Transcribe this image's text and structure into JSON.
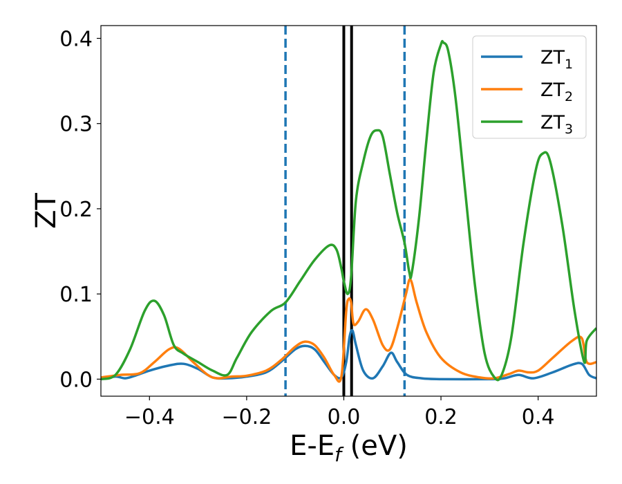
{
  "chart_data": {
    "type": "line",
    "xlabel": "E-E",
    "xlabel_sub": "f",
    "xlabel_unit": " (eV)",
    "ylabel": "ZT",
    "xlim": [
      -0.5,
      0.52
    ],
    "ylim": [
      -0.02,
      0.415
    ],
    "grid": false,
    "legend_position": "top-right",
    "x_ticks": [
      -0.4,
      -0.2,
      0.0,
      0.2,
      0.4
    ],
    "x_tick_labels": [
      "−0.4",
      "−0.2",
      "0.0",
      "0.2",
      "0.4"
    ],
    "y_ticks": [
      0.0,
      0.1,
      0.2,
      0.3,
      0.4
    ],
    "y_tick_labels": [
      "0.0",
      "0.1",
      "0.2",
      "0.3",
      "0.4"
    ],
    "vertical_lines": [
      {
        "x": -0.12,
        "style": "dashed",
        "color": "#1f77b4"
      },
      {
        "x": 0.0,
        "style": "solid",
        "color": "#000000"
      },
      {
        "x": 0.016,
        "style": "dashed",
        "color": "#1f77b4"
      },
      {
        "x": 0.016,
        "style": "solid",
        "color": "#000000"
      },
      {
        "x": 0.125,
        "style": "dashed",
        "color": "#1f77b4"
      }
    ],
    "series": [
      {
        "name": "ZT",
        "sub": "1",
        "color": "#1f77b4",
        "points": [
          [
            -0.5,
            0.0
          ],
          [
            -0.47,
            0.003
          ],
          [
            -0.45,
            0.001
          ],
          [
            -0.43,
            0.004
          ],
          [
            -0.4,
            0.01
          ],
          [
            -0.36,
            0.016
          ],
          [
            -0.33,
            0.018
          ],
          [
            -0.3,
            0.012
          ],
          [
            -0.27,
            0.002
          ],
          [
            -0.24,
            0.001
          ],
          [
            -0.2,
            0.003
          ],
          [
            -0.16,
            0.008
          ],
          [
            -0.13,
            0.02
          ],
          [
            -0.1,
            0.035
          ],
          [
            -0.08,
            0.039
          ],
          [
            -0.06,
            0.035
          ],
          [
            -0.04,
            0.02
          ],
          [
            -0.02,
            0.005
          ],
          [
            -0.005,
            0.002
          ],
          [
            0.005,
            0.02
          ],
          [
            0.012,
            0.05
          ],
          [
            0.018,
            0.057
          ],
          [
            0.025,
            0.04
          ],
          [
            0.04,
            0.01
          ],
          [
            0.06,
            0.001
          ],
          [
            0.08,
            0.015
          ],
          [
            0.097,
            0.031
          ],
          [
            0.11,
            0.02
          ],
          [
            0.13,
            0.005
          ],
          [
            0.16,
            0.001
          ],
          [
            0.2,
            0.0
          ],
          [
            0.3,
            0.0
          ],
          [
            0.33,
            0.001
          ],
          [
            0.36,
            0.005
          ],
          [
            0.39,
            0.001
          ],
          [
            0.43,
            0.008
          ],
          [
            0.47,
            0.017
          ],
          [
            0.49,
            0.018
          ],
          [
            0.505,
            0.005
          ],
          [
            0.52,
            0.001
          ]
        ]
      },
      {
        "name": "ZT",
        "sub": "2",
        "color": "#ff7f0e",
        "points": [
          [
            -0.5,
            0.002
          ],
          [
            -0.46,
            0.005
          ],
          [
            -0.42,
            0.007
          ],
          [
            -0.39,
            0.02
          ],
          [
            -0.36,
            0.035
          ],
          [
            -0.34,
            0.036
          ],
          [
            -0.31,
            0.02
          ],
          [
            -0.28,
            0.005
          ],
          [
            -0.26,
            0.001
          ],
          [
            -0.23,
            0.003
          ],
          [
            -0.2,
            0.004
          ],
          [
            -0.16,
            0.01
          ],
          [
            -0.13,
            0.022
          ],
          [
            -0.1,
            0.038
          ],
          [
            -0.08,
            0.044
          ],
          [
            -0.06,
            0.04
          ],
          [
            -0.04,
            0.025
          ],
          [
            -0.02,
            0.005
          ],
          [
            -0.005,
            0.003
          ],
          [
            0.005,
            0.08
          ],
          [
            0.01,
            0.094
          ],
          [
            0.015,
            0.09
          ],
          [
            0.02,
            0.065
          ],
          [
            0.03,
            0.068
          ],
          [
            0.045,
            0.082
          ],
          [
            0.06,
            0.07
          ],
          [
            0.08,
            0.04
          ],
          [
            0.095,
            0.035
          ],
          [
            0.11,
            0.06
          ],
          [
            0.128,
            0.1
          ],
          [
            0.137,
            0.117
          ],
          [
            0.15,
            0.09
          ],
          [
            0.17,
            0.055
          ],
          [
            0.2,
            0.025
          ],
          [
            0.24,
            0.008
          ],
          [
            0.28,
            0.002
          ],
          [
            0.31,
            0.001
          ],
          [
            0.34,
            0.006
          ],
          [
            0.36,
            0.01
          ],
          [
            0.38,
            0.008
          ],
          [
            0.4,
            0.01
          ],
          [
            0.43,
            0.025
          ],
          [
            0.47,
            0.045
          ],
          [
            0.49,
            0.048
          ],
          [
            0.5,
            0.02
          ],
          [
            0.52,
            0.02
          ]
        ]
      },
      {
        "name": "ZT",
        "sub": "3",
        "color": "#2ca02c",
        "points": [
          [
            -0.5,
            0.0
          ],
          [
            -0.47,
            0.005
          ],
          [
            -0.44,
            0.035
          ],
          [
            -0.41,
            0.08
          ],
          [
            -0.39,
            0.092
          ],
          [
            -0.37,
            0.075
          ],
          [
            -0.35,
            0.04
          ],
          [
            -0.33,
            0.03
          ],
          [
            -0.3,
            0.02
          ],
          [
            -0.27,
            0.01
          ],
          [
            -0.24,
            0.005
          ],
          [
            -0.22,
            0.025
          ],
          [
            -0.19,
            0.055
          ],
          [
            -0.15,
            0.08
          ],
          [
            -0.12,
            0.09
          ],
          [
            -0.09,
            0.115
          ],
          [
            -0.06,
            0.14
          ],
          [
            -0.03,
            0.157
          ],
          [
            -0.015,
            0.152
          ],
          [
            -0.005,
            0.13
          ],
          [
            0.0,
            0.115
          ],
          [
            0.008,
            0.1
          ],
          [
            0.015,
            0.12
          ],
          [
            0.025,
            0.21
          ],
          [
            0.04,
            0.255
          ],
          [
            0.055,
            0.285
          ],
          [
            0.068,
            0.292
          ],
          [
            0.08,
            0.285
          ],
          [
            0.095,
            0.24
          ],
          [
            0.11,
            0.195
          ],
          [
            0.125,
            0.16
          ],
          [
            0.135,
            0.125
          ],
          [
            0.14,
            0.125
          ],
          [
            0.155,
            0.19
          ],
          [
            0.17,
            0.28
          ],
          [
            0.185,
            0.36
          ],
          [
            0.2,
            0.393
          ],
          [
            0.205,
            0.395
          ],
          [
            0.215,
            0.385
          ],
          [
            0.23,
            0.33
          ],
          [
            0.25,
            0.22
          ],
          [
            0.27,
            0.11
          ],
          [
            0.29,
            0.03
          ],
          [
            0.31,
            0.002
          ],
          [
            0.325,
            0.005
          ],
          [
            0.345,
            0.05
          ],
          [
            0.37,
            0.16
          ],
          [
            0.395,
            0.245
          ],
          [
            0.41,
            0.265
          ],
          [
            0.425,
            0.255
          ],
          [
            0.45,
            0.18
          ],
          [
            0.475,
            0.08
          ],
          [
            0.495,
            0.02
          ],
          [
            0.5,
            0.045
          ],
          [
            0.52,
            0.06
          ]
        ]
      }
    ]
  }
}
